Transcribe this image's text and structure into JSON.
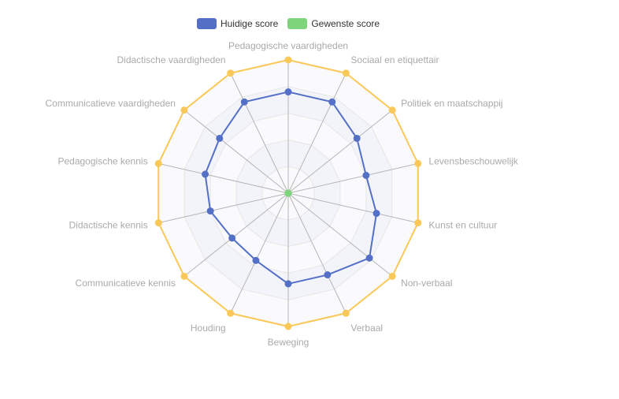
{
  "legend": {
    "items": [
      {
        "label": "Huidige score",
        "color": "#5470c6"
      },
      {
        "label": "Gewenste score",
        "color": "#7ed47a"
      }
    ]
  },
  "chart_data": {
    "type": "radar",
    "title": "",
    "indicators": [
      "Pedagogische vaardigheden",
      "Sociaal en etiquettair",
      "Politiek en maatschappij",
      "Levensbeschouwelijk",
      "Kunst en cultuur",
      "Non-verbaal",
      "Verbaal",
      "Beweging",
      "Houding",
      "Communicatieve kennis",
      "Didactische kennis",
      "Pedagogische kennis",
      "Communicatieve vaardigheden",
      "Didactische vaardigheden"
    ],
    "max": 5,
    "split_number": 5,
    "series": [
      {
        "name": "Huidige score",
        "color": "#5470c6",
        "values": [
          3.8,
          3.8,
          3.3,
          3.0,
          3.4,
          3.9,
          3.4,
          3.4,
          2.8,
          2.7,
          3.0,
          3.2,
          3.3,
          3.8
        ]
      },
      {
        "name": "Gewenste score",
        "color": "#7ed47a",
        "values": [
          0,
          0,
          0,
          0,
          0,
          0,
          0,
          0,
          0,
          0,
          0,
          0,
          0,
          0
        ]
      },
      {
        "color": "#fac858",
        "values": [
          5,
          5,
          5,
          5,
          5,
          5,
          5,
          5,
          5,
          5,
          5,
          5,
          5,
          5
        ]
      }
    ]
  }
}
